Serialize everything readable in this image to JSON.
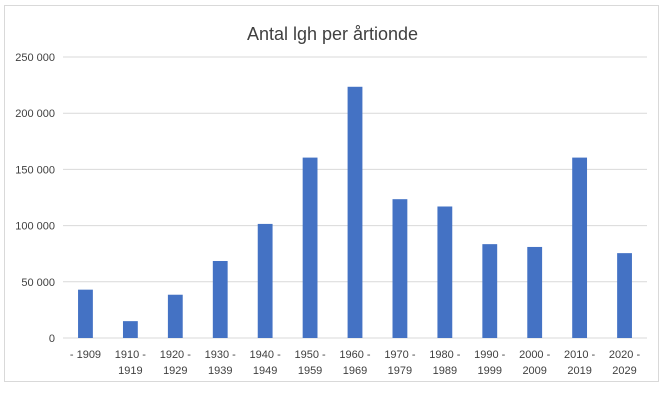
{
  "chart_data": {
    "type": "bar",
    "title": "Antal lgh per årtionde",
    "xlabel": "",
    "ylabel": "",
    "categories": [
      [
        "- 1909"
      ],
      [
        "1910 -",
        "1919"
      ],
      [
        "1920 -",
        "1929"
      ],
      [
        "1930 -",
        "1939"
      ],
      [
        "1940 -",
        "1949"
      ],
      [
        "1950 -",
        "1959"
      ],
      [
        "1960 -",
        "1969"
      ],
      [
        "1970 -",
        "1979"
      ],
      [
        "1980 -",
        "1989"
      ],
      [
        "1990 -",
        "1999"
      ],
      [
        "2000 -",
        "2009"
      ],
      [
        "2010 -",
        "2019"
      ],
      [
        "2020 -",
        "2029"
      ]
    ],
    "values": [
      43000,
      15000,
      38500,
      68500,
      101500,
      160500,
      223500,
      123500,
      117000,
      83500,
      81000,
      160500,
      75500
    ],
    "ylim": [
      0,
      250000
    ],
    "yticks": [
      0,
      50000,
      100000,
      150000,
      200000,
      250000
    ],
    "ytick_labels": [
      "0",
      "50 000",
      "100 000",
      "150 000",
      "200 000",
      "250 000"
    ],
    "grid": true,
    "legend": "none",
    "bar_color": "#4472c4"
  }
}
